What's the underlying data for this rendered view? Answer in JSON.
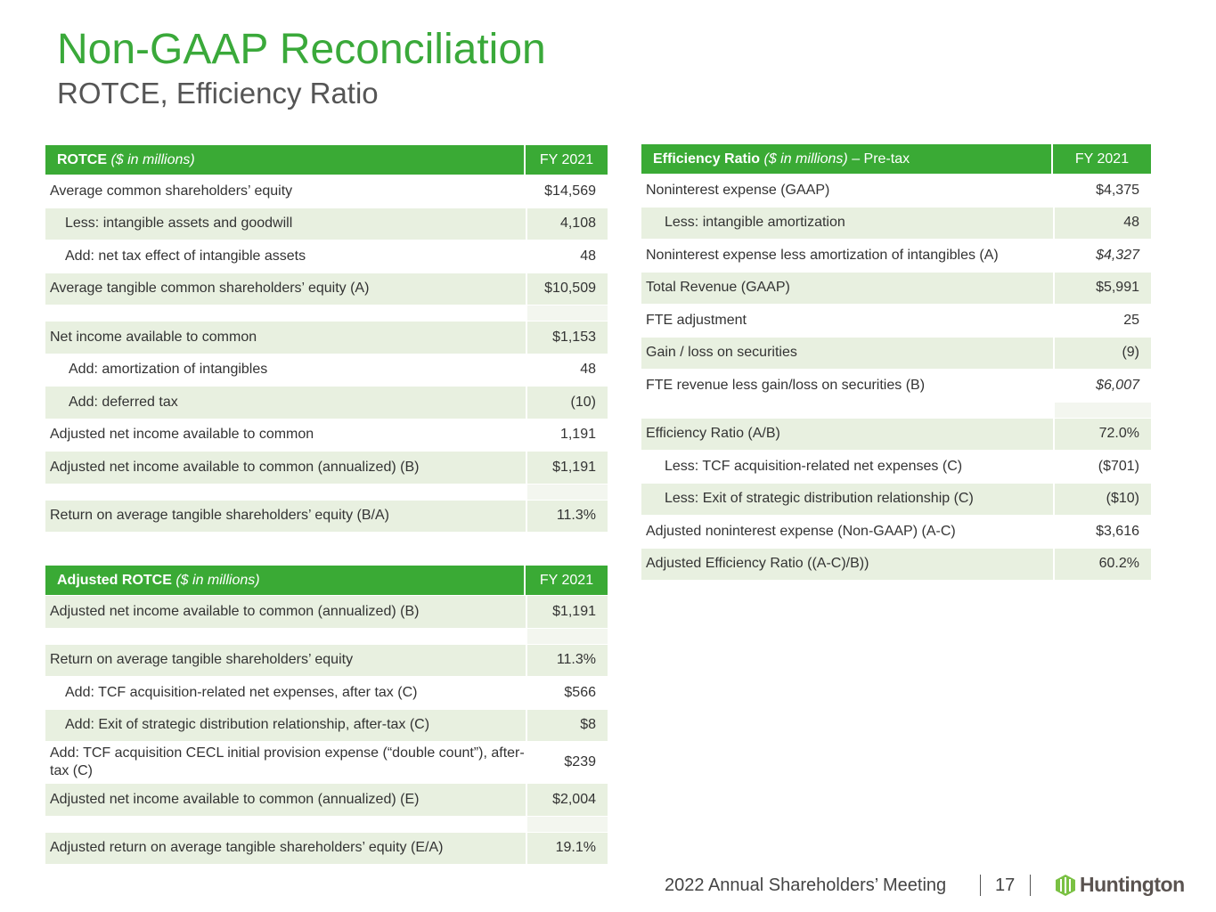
{
  "title": "Non-GAAP Reconciliation",
  "subtitle": "ROTCE, Efficiency Ratio",
  "colors": {
    "green": "#3aaa35",
    "shade": "#e8f0e0"
  },
  "tables": [
    {
      "id": "rotce",
      "header_bold": "ROTCE",
      "header_italic": "($ in millions)",
      "header_suffix": "",
      "col": "FY 2021",
      "rows": [
        {
          "label": "Average common shareholders’ equity",
          "value": "$14,569"
        },
        {
          "label": "Less: intangible assets and goodwill",
          "value": "4,108",
          "indent": 17,
          "sh": true
        },
        {
          "label": "Add: net tax effect of intangible assets",
          "value": "48",
          "indent": 17
        },
        {
          "label": "Average tangible common shareholders’ equity (A)",
          "value": "$10,509",
          "sh": true
        },
        {
          "blank": true
        },
        {
          "label": "Net income available to common",
          "value": "$1,153",
          "sh": true
        },
        {
          "label": "Add: amortization of intangibles",
          "value": "48",
          "indent": 21
        },
        {
          "label": "Add: deferred tax",
          "value": "(10)",
          "indent": 21,
          "sh": true
        },
        {
          "label": "Adjusted net income available to common",
          "value": "1,191"
        },
        {
          "label": "Adjusted net income available to common (annualized) (B)",
          "value": "$1,191",
          "sh": true
        },
        {
          "blank": true
        },
        {
          "label": "Return on average tangible shareholders’ equity (B/A)",
          "value": "11.3%",
          "sh": true
        }
      ]
    },
    {
      "id": "adjusted-rotce",
      "header_bold": "Adjusted ROTCE",
      "header_italic": "($ in millions)",
      "header_suffix": "",
      "col": "FY 2021",
      "rows": [
        {
          "label": "Adjusted net income available to common (annualized) (B)",
          "value": "$1,191",
          "sh": true
        },
        {
          "blank": true
        },
        {
          "label": "Return on average tangible shareholders’ equity",
          "value": "11.3%",
          "sh": true
        },
        {
          "label": "Add: TCF acquisition-related net expenses, after tax (C)",
          "value": "$566",
          "indent": 17
        },
        {
          "label": "Add: Exit of strategic distribution relationship, after-tax (C)",
          "value": "$8",
          "indent": 17,
          "sh": true
        },
        {
          "label": "Add: TCF acquisition CECL initial provision expense (“double count”), after-tax (C)",
          "value": "$239",
          "tall": true
        },
        {
          "label": "Adjusted net income available to common (annualized) (E)",
          "value": "$2,004",
          "sh": true
        },
        {
          "blank": true
        },
        {
          "label": "Adjusted return on average tangible shareholders’ equity (E/A)",
          "value": "19.1%",
          "sh": true
        }
      ]
    },
    {
      "id": "efficiency",
      "header_bold": "Efficiency Ratio",
      "header_italic": "($ in millions)",
      "header_suffix": "– Pre-tax",
      "col": "FY 2021",
      "rows": [
        {
          "label": "Noninterest expense (GAAP)",
          "value": "$4,375"
        },
        {
          "label": "Less: intangible amortization",
          "value": "48",
          "indent": 21,
          "sh": true
        },
        {
          "label": "Noninterest expense less amortization of intangibles (A)",
          "value": "$4,327",
          "italic": true
        },
        {
          "label": "Total Revenue (GAAP)",
          "value": "$5,991",
          "sh": true
        },
        {
          "label": "FTE adjustment",
          "value": "25"
        },
        {
          "label": "Gain / loss on securities",
          "value": "(9)",
          "sh": true
        },
        {
          "label": "FTE revenue less gain/loss on securities (B)",
          "value": "$6,007",
          "italic": true
        },
        {
          "blank": true
        },
        {
          "label": "Efficiency Ratio (A/B)",
          "value": "72.0%",
          "sh": true
        },
        {
          "label": "Less: TCF acquisition-related net expenses (C)",
          "value": "($701)",
          "indent": 21
        },
        {
          "label": "Less: Exit of strategic distribution relationship (C)",
          "value": "($10)",
          "indent": 21,
          "sh": true
        },
        {
          "label": "Adjusted noninterest expense (Non-GAAP) (A-C)",
          "value": "$3,616"
        },
        {
          "label": "Adjusted Efficiency Ratio ((A-C)/B))",
          "value": "60.2%",
          "sh": true
        }
      ]
    }
  ],
  "footer": {
    "meeting": "2022 Annual Shareholders’ Meeting",
    "page": "17",
    "logo": "Huntington"
  }
}
